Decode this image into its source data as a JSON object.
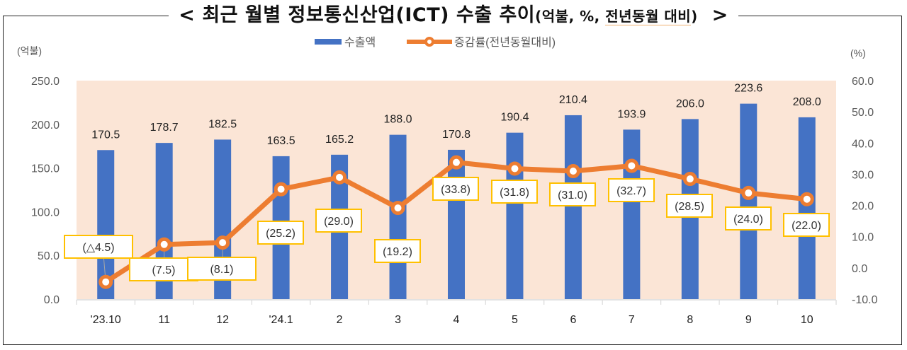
{
  "title": {
    "main": "< 최근 월별 정보통신산업(ICT) 수출 추이",
    "sub_prefix": "(억불, %, ",
    "sub_underlined": "전년동월 대비",
    "sub_suffix": ")",
    "close": ">"
  },
  "axes": {
    "left_unit": "(억불)",
    "right_unit": "(%)",
    "left_ticks": [
      "0.0",
      "50.0",
      "100.0",
      "150.0",
      "200.0",
      "250.0"
    ],
    "right_ticks": [
      "-10.0",
      "0.0",
      "10.0",
      "20.0",
      "30.0",
      "40.0",
      "50.0",
      "60.0"
    ]
  },
  "legend": {
    "bar_label": "수출액",
    "line_label": "증감률(전년동월대비)"
  },
  "colors": {
    "bar": "#4472C4",
    "line": "#ED7D31",
    "plot_bg": "#FBE5D6",
    "label_border": "#FFC000"
  },
  "chart_data": {
    "type": "bar",
    "title": "최근 월별 정보통신산업(ICT) 수출 추이(억불, %, 전년동월 대비)",
    "xlabel": "",
    "ylabel": "억불",
    "y2label": "%",
    "categories": [
      "'23.10",
      "11",
      "12",
      "'24.1",
      "2",
      "3",
      "4",
      "5",
      "6",
      "7",
      "8",
      "9",
      "10"
    ],
    "series": [
      {
        "name": "수출액",
        "type": "bar",
        "axis": "left",
        "values": [
          170.5,
          178.7,
          182.5,
          163.5,
          165.2,
          188.0,
          170.8,
          190.4,
          210.4,
          193.9,
          206.0,
          223.6,
          208.0
        ],
        "labels": [
          "170.5",
          "178.7",
          "182.5",
          "163.5",
          "165.2",
          "188.0",
          "170.8",
          "190.4",
          "210.4",
          "193.9",
          "206.0",
          "223.6",
          "208.0"
        ]
      },
      {
        "name": "증감률(전년동월대비)",
        "type": "line",
        "axis": "right",
        "values": [
          -4.5,
          7.5,
          8.1,
          25.2,
          29.0,
          19.2,
          33.8,
          31.8,
          31.0,
          32.7,
          28.5,
          24.0,
          22.0
        ],
        "labels": [
          "(△4.5)",
          "(7.5)",
          "(8.1)",
          "(25.2)",
          "(29.0)",
          "(19.2)",
          "(33.8)",
          "(31.8)",
          "(31.0)",
          "(32.7)",
          "(28.5)",
          "(24.0)",
          "(22.0)"
        ]
      }
    ],
    "ylim": [
      0,
      250
    ],
    "y2lim": [
      -10,
      60
    ],
    "grid": false,
    "legend_position": "top"
  }
}
